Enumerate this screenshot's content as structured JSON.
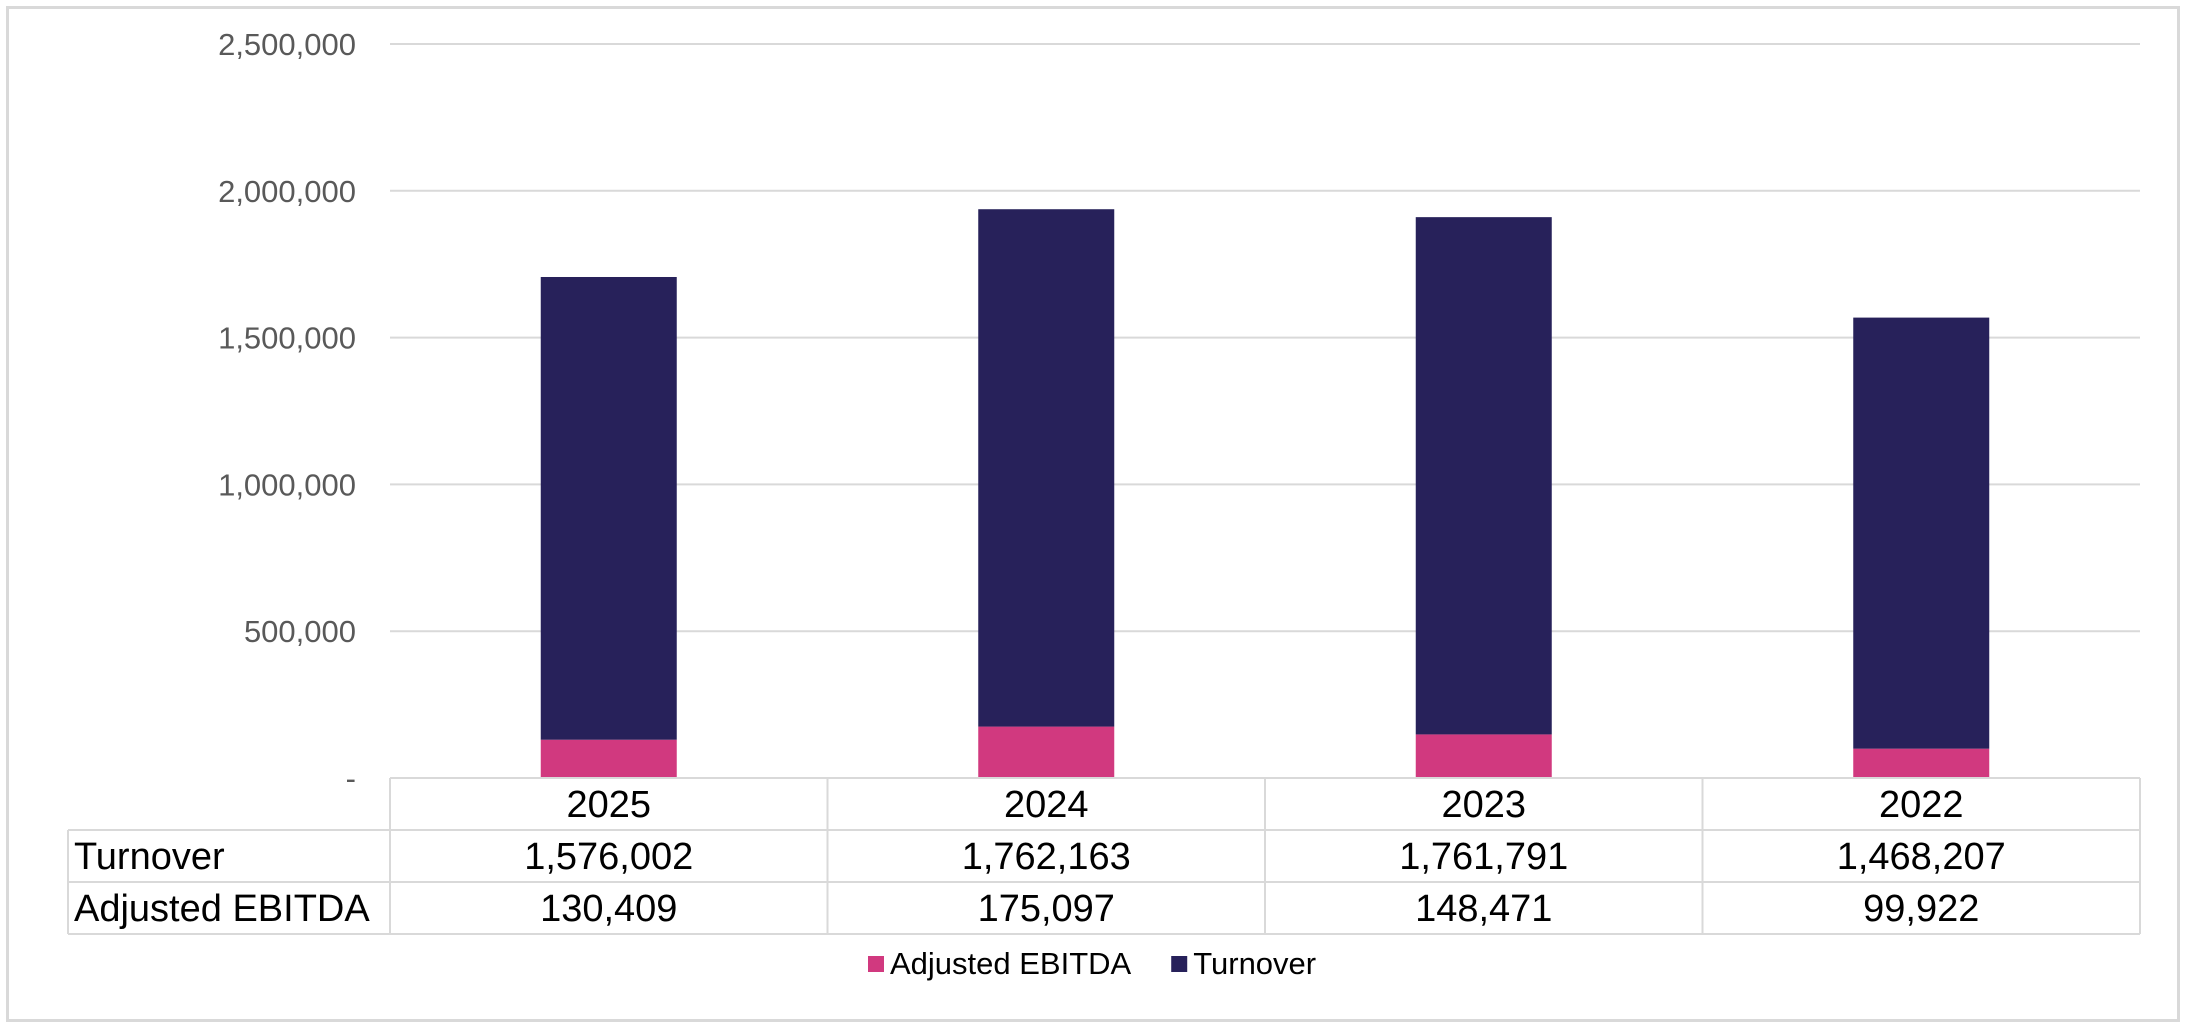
{
  "chart_data": {
    "type": "bar",
    "stacked": true,
    "categories": [
      "2025",
      "2024",
      "2023",
      "2022"
    ],
    "series": [
      {
        "name": "Adjusted EBITDA",
        "values": [
          130409,
          175097,
          148471,
          99922
        ],
        "color": "#d1397f"
      },
      {
        "name": "Turnover",
        "values": [
          1576002,
          1762163,
          1761791,
          1468207
        ],
        "color": "#27215a"
      }
    ],
    "ylim": [
      0,
      2500000
    ],
    "yticks": [
      0,
      500000,
      1000000,
      1500000,
      2000000,
      2500000
    ],
    "ytick_labels": [
      "-",
      "500,000",
      "1,000,000",
      "1,500,000",
      "2,000,000",
      "2,500,000"
    ],
    "data_table": {
      "rows": [
        {
          "label": "Turnover",
          "values": [
            "1,576,002",
            "1,762,163",
            "1,761,791",
            "1,468,207"
          ]
        },
        {
          "label": "Adjusted EBITDA",
          "values": [
            "130,409",
            "175,097",
            "148,471",
            "99,922"
          ]
        }
      ]
    },
    "legend": [
      "Adjusted EBITDA",
      "Turnover"
    ],
    "legend_position": "bottom",
    "grid": true,
    "title": "",
    "xlabel": "",
    "ylabel": ""
  }
}
